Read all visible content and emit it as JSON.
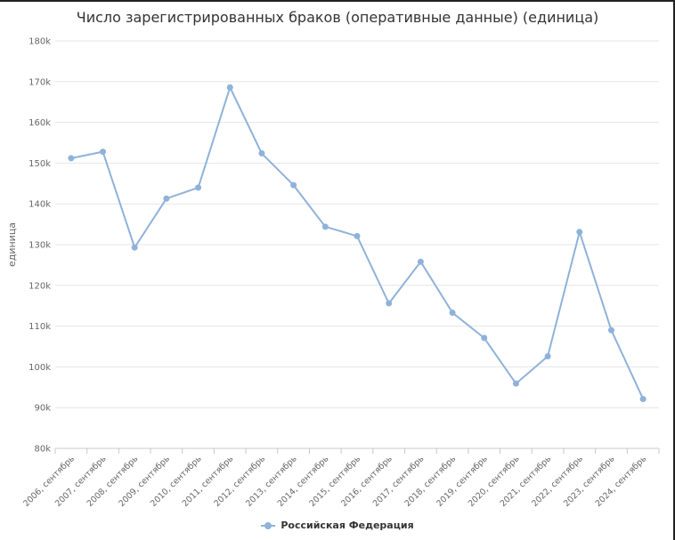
{
  "chart_data": {
    "type": "line",
    "title": "Число зарегистрированных браков (оперативные данные) (единица)",
    "xlabel": "",
    "ylabel": "единица",
    "ylim": [
      80000,
      180000
    ],
    "yticks": [
      80000,
      90000,
      100000,
      110000,
      120000,
      130000,
      140000,
      150000,
      160000,
      170000,
      180000
    ],
    "ytick_labels": [
      "80k",
      "90k",
      "100k",
      "110k",
      "120k",
      "130k",
      "140k",
      "150k",
      "160k",
      "170k",
      "180k"
    ],
    "categories": [
      "2006, сентябрь",
      "2007, сентябрь",
      "2008, сентябрь",
      "2009, сентябрь",
      "2010, сентябрь",
      "2011, сентябрь",
      "2012, сентябрь",
      "2013, сентябрь",
      "2014, сентябрь",
      "2015, сентябрь",
      "2016, сентябрь",
      "2017, сентябрь",
      "2018, сентябрь",
      "2019, сентябрь",
      "2020, сентябрь",
      "2021, сентябрь",
      "2022, сентябрь",
      "2023, сентябрь",
      "2024, сентябрь"
    ],
    "series": [
      {
        "name": "Российская Федерация",
        "color": "#8fb2d9",
        "values": [
          151200,
          152800,
          129300,
          141300,
          144000,
          168600,
          152400,
          144600,
          134400,
          132100,
          115600,
          125800,
          113300,
          107100,
          95900,
          102600,
          133100,
          109000,
          92100
        ]
      }
    ],
    "grid": true,
    "legend_position": "bottom-center"
  }
}
